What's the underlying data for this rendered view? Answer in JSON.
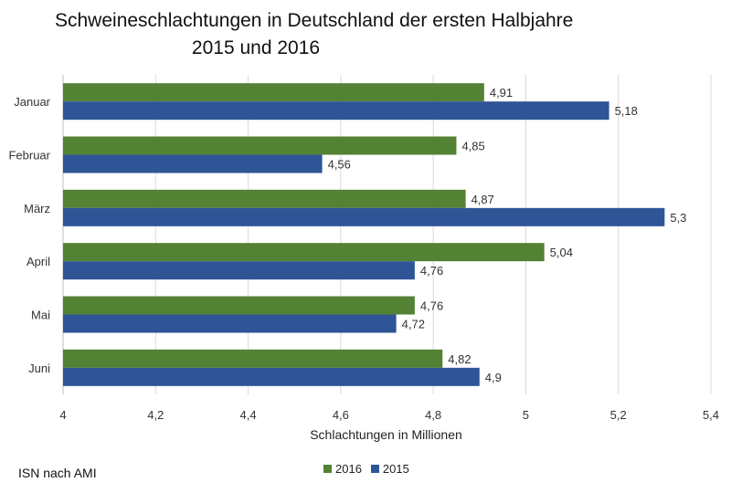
{
  "chart_data": {
    "type": "bar",
    "orientation": "horizontal",
    "title_lines": [
      "Schweineschlachtungen in Deutschland der ersten Halbjahre",
      "2015 und 2016"
    ],
    "xlabel": "Schlachtungen in Millionen",
    "ylabel": "",
    "xlim": [
      4,
      5.4
    ],
    "x_ticks": [
      "4",
      "4,2",
      "4,4",
      "4,6",
      "4,8",
      "5",
      "5,2",
      "5,4"
    ],
    "x_tick_values": [
      4,
      4.2,
      4.4,
      4.6,
      4.8,
      5,
      5.2,
      5.4
    ],
    "grid": true,
    "legend_position": "bottom",
    "categories": [
      "Januar",
      "Februar",
      "März",
      "April",
      "Mai",
      "Juni"
    ],
    "series": [
      {
        "name": "2016",
        "color": "#548235",
        "values": [
          4.91,
          4.85,
          4.87,
          5.04,
          4.76,
          4.82
        ],
        "labels": [
          "4,91",
          "4,85",
          "4,87",
          "5,04",
          "4,76",
          "4,82"
        ]
      },
      {
        "name": "2015",
        "color": "#2F5597",
        "values": [
          5.18,
          4.56,
          5.3,
          4.76,
          4.72,
          4.9
        ],
        "labels": [
          "5,18",
          "4,56",
          "5,3",
          "4,76",
          "4,72",
          "4,9"
        ]
      }
    ]
  },
  "source_note": "ISN nach AMI"
}
